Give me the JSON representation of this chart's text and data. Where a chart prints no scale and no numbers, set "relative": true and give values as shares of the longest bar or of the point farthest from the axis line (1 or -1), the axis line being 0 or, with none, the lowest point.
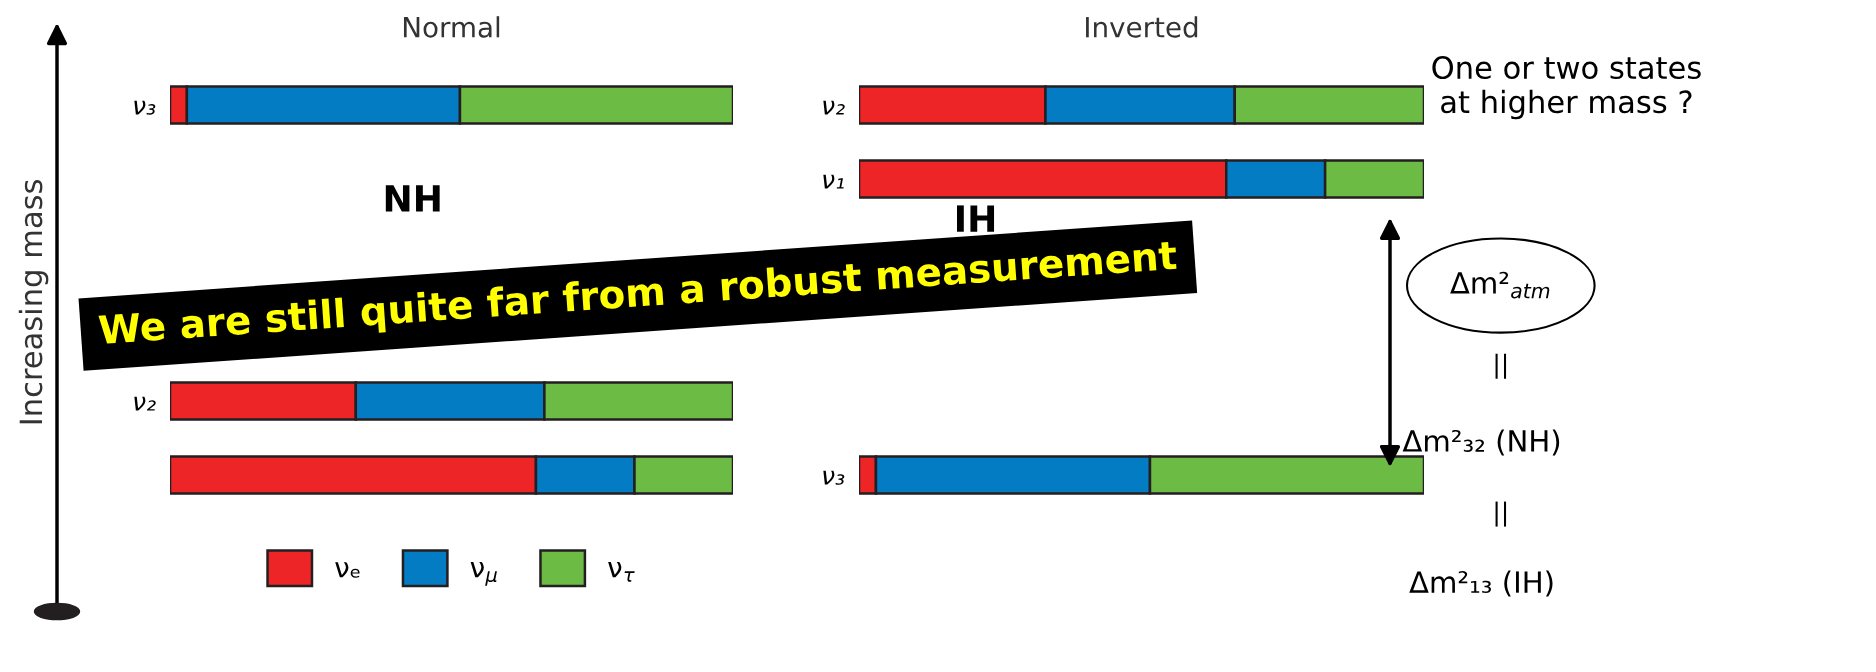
{
  "chart_data": [
    {
      "type": "bar",
      "orientation": "horizontal",
      "stacked": true,
      "relative": true,
      "title": "Normal",
      "ylabel": "Increasing mass",
      "categories": [
        "ν₃",
        null,
        null,
        null,
        "ν₂",
        null
      ],
      "series": [
        {
          "name": "νₑ",
          "color": "#ee2527",
          "values": [
            0.03,
            null,
            null,
            null,
            0.33,
            0.65
          ]
        },
        {
          "name": "ν$_{μ}$",
          "color": "#047cc4",
          "values": [
            0.485,
            null,
            null,
            null,
            0.335,
            0.175
          ]
        },
        {
          "name": "ν$_{τ}$",
          "color": "#6cbb45",
          "values": [
            0.485,
            null,
            null,
            null,
            0.335,
            0.175
          ]
        }
      ],
      "legend": "bottom",
      "annotations": [
        "NH",
        "We are still quite far from a robust measurement"
      ]
    },
    {
      "type": "bar",
      "orientation": "horizontal",
      "stacked": true,
      "relative": true,
      "title": "Inverted",
      "categories": [
        "ν₂",
        "ν₁",
        null,
        null,
        null,
        "ν₃"
      ],
      "series": [
        {
          "color": "#ee2527",
          "values": [
            0.33,
            0.65,
            null,
            null,
            null,
            0.03
          ]
        },
        {
          "color": "#047cc4",
          "values": [
            0.335,
            0.175,
            null,
            null,
            null,
            0.485
          ]
        },
        {
          "color": "#6cbb45",
          "values": [
            0.335,
            0.175,
            null,
            null,
            null,
            0.485
          ]
        }
      ],
      "annotations": [
        "IH",
        "One or two states\nat higher mass ?",
        "Δm²$_{atm}$",
        "||",
        "Δm²₃₂ (NH)",
        "||",
        "Δm²₁₃ (IH)"
      ]
    }
  ]
}
